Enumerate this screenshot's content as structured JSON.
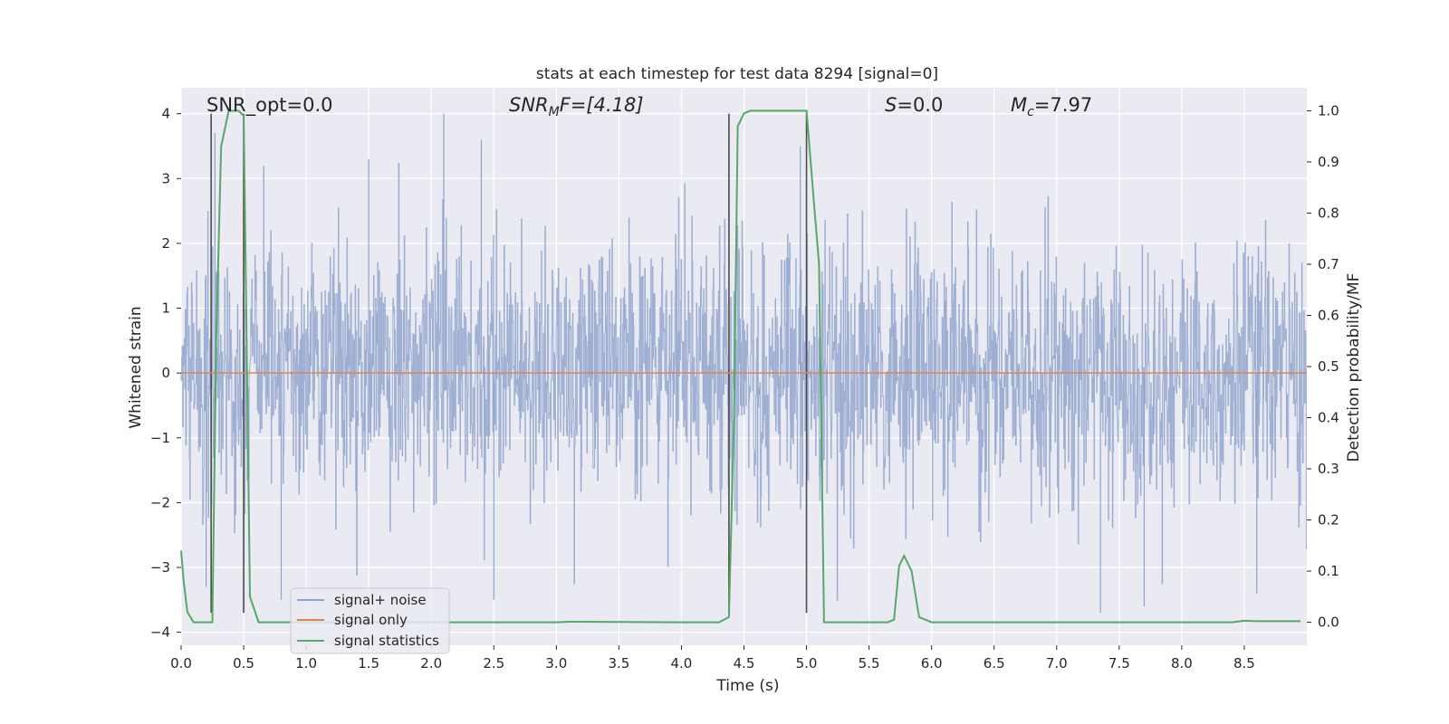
{
  "chart_data": {
    "type": "line",
    "title": "stats at each timestep for test data 8294 [signal=0]",
    "xlabel": "Time (s)",
    "ylabel": "Whitened strain",
    "ylabel_right": "Detection probability/MF",
    "xlim": [
      0.0,
      9.0
    ],
    "ylim": [
      -4.2,
      4.4
    ],
    "ylim_right": [
      -0.045,
      1.045
    ],
    "x_ticks": [
      "0.0",
      "0.5",
      "1.0",
      "1.5",
      "2.0",
      "2.5",
      "3.0",
      "3.5",
      "4.0",
      "4.5",
      "5.0",
      "5.5",
      "6.0",
      "6.5",
      "7.0",
      "7.5",
      "8.0",
      "8.5"
    ],
    "x_tick_values": [
      0,
      0.5,
      1,
      1.5,
      2,
      2.5,
      3,
      3.5,
      4,
      4.5,
      5,
      5.5,
      6,
      6.5,
      7,
      7.5,
      8,
      8.5
    ],
    "y_ticks": [
      "4",
      "3",
      "2",
      "1",
      "0",
      "−1",
      "−2",
      "−3",
      "−4"
    ],
    "y_tick_values": [
      4,
      3,
      2,
      1,
      0,
      -1,
      -2,
      -3,
      -4
    ],
    "y_ticks_right": [
      "1.0",
      "0.9",
      "0.8",
      "0.7",
      "0.6",
      "0.5",
      "0.4",
      "0.3",
      "0.2",
      "0.1",
      "0.0"
    ],
    "y_tick_values_right": [
      1.0,
      0.9,
      0.8,
      0.7,
      0.6,
      0.5,
      0.4,
      0.3,
      0.2,
      0.1,
      0.0
    ],
    "grid": true,
    "legend_position": "bottom-left",
    "annotations": {
      "snr_opt": "SNR_opt=0.0",
      "snr_mf_symbol": "SNR",
      "snr_mf_sub": "M",
      "snr_mf_rest": "F=[4.18]",
      "s_symbol": "S",
      "s_rest": "=0.0",
      "mc_symbol": "M",
      "mc_sub": "c",
      "mc_rest": "=7.97"
    },
    "series": [
      {
        "name": "signal+ noise",
        "color": "#8fa3cc",
        "axis": "left",
        "description_values": {
          "x_range": [
            0.0,
            9.0
          ],
          "typical_envelope": [
            -1.7,
            1.7
          ],
          "peak_spikes": [
            {
              "x": 0.27,
              "y": 3.7
            },
            {
              "x": 0.5,
              "y": 3.3
            },
            {
              "x": 1.5,
              "y": 3.3
            },
            {
              "x": 2.1,
              "y": 4.0
            },
            {
              "x": 2.4,
              "y": 3.6
            },
            {
              "x": 4.95,
              "y": 3.5
            },
            {
              "x": 0.2,
              "y": -3.3
            },
            {
              "x": 0.8,
              "y": -3.5
            },
            {
              "x": 2.5,
              "y": -3.5
            },
            {
              "x": 7.35,
              "y": -3.7
            },
            {
              "x": 7.7,
              "y": -3.6
            },
            {
              "x": 8.6,
              "y": -3.4
            }
          ]
        }
      },
      {
        "name": "signal only",
        "color": "#dd8452",
        "axis": "left",
        "x": [
          0.0,
          9.0
        ],
        "y": [
          0.0,
          0.0
        ]
      },
      {
        "name": "signal statistics",
        "color": "#55a868",
        "axis": "right",
        "x": [
          0.0,
          0.02,
          0.05,
          0.1,
          0.15,
          0.2,
          0.25,
          0.28,
          0.32,
          0.38,
          0.42,
          0.46,
          0.5,
          0.55,
          0.62,
          0.7,
          0.8,
          1.0,
          2.0,
          3.0,
          3.1,
          3.2,
          4.0,
          4.3,
          4.38,
          4.42,
          4.45,
          4.5,
          4.55,
          4.7,
          4.9,
          5.0,
          5.06,
          5.1,
          5.14,
          5.2,
          5.3,
          5.5,
          5.65,
          5.7,
          5.74,
          5.78,
          5.84,
          5.9,
          6.0,
          7.0,
          8.0,
          8.4,
          8.5,
          8.6,
          8.95
        ],
        "y": [
          0.14,
          0.08,
          0.02,
          0.0,
          0.0,
          0.0,
          0.0,
          0.55,
          0.93,
          1.0,
          1.0,
          1.0,
          0.99,
          0.05,
          0.0,
          0.0,
          0.0,
          0.0,
          0.0,
          0.0,
          0.001,
          0.001,
          0.0,
          0.0,
          0.01,
          0.4,
          0.97,
          0.995,
          1.0,
          1.0,
          1.0,
          1.0,
          0.82,
          0.7,
          0.0,
          0.0,
          0.0,
          0.0,
          0.0,
          0.005,
          0.11,
          0.13,
          0.1,
          0.01,
          0.0,
          0.0,
          0.0,
          0.0,
          0.003,
          0.002,
          0.002
        ]
      }
    ],
    "vertical_markers": [
      {
        "x": 0.24,
        "y_top": 4.0,
        "y_bottom": -3.7
      },
      {
        "x": 0.5,
        "y_top": 4.0,
        "y_bottom": -3.7
      },
      {
        "x": 4.38,
        "y_top": 4.0,
        "y_bottom": -3.7
      },
      {
        "x": 5.0,
        "y_top": 4.0,
        "y_bottom": -3.7
      }
    ]
  },
  "colors": {
    "plot_bg": "#eaeaf2",
    "grid": "#ffffff",
    "marker": "#4c4c4c"
  }
}
